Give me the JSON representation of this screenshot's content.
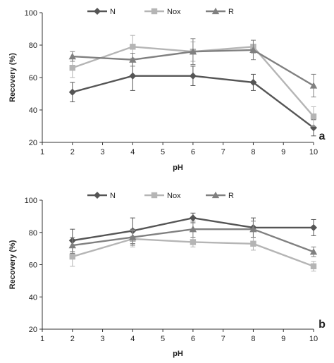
{
  "chart_data": [
    {
      "type": "line",
      "panel_label": "a",
      "x": [
        2,
        4,
        6,
        8,
        10
      ],
      "xlabel": "pH",
      "ylabel": "Recovery (%)",
      "xlim": [
        1,
        10
      ],
      "ylim": [
        20,
        100
      ],
      "xticks": [
        1,
        2,
        3,
        4,
        5,
        6,
        7,
        8,
        9,
        10
      ],
      "yticks": [
        20,
        40,
        60,
        80,
        100
      ],
      "legend_position": "top",
      "grid": false,
      "series": [
        {
          "name": "N",
          "marker": "diamond",
          "color": "#555555",
          "values": [
            51,
            61,
            61,
            57,
            29
          ],
          "errors": [
            6,
            9,
            6,
            5,
            5
          ]
        },
        {
          "name": "Nox",
          "marker": "square",
          "color": "#b5b5b5",
          "values": [
            66,
            79,
            76,
            79,
            36
          ],
          "errors": [
            6,
            7,
            6,
            4,
            6
          ]
        },
        {
          "name": "R",
          "marker": "triangle",
          "color": "#808080",
          "values": [
            73,
            71,
            76,
            77,
            55
          ],
          "errors": [
            3,
            4,
            8,
            6,
            7
          ]
        }
      ]
    },
    {
      "type": "line",
      "panel_label": "b",
      "x": [
        2,
        4,
        6,
        8,
        10
      ],
      "xlabel": "pH",
      "ylabel": "Recovery (%)",
      "xlim": [
        1,
        10
      ],
      "ylim": [
        20,
        100
      ],
      "xticks": [
        1,
        2,
        3,
        4,
        5,
        6,
        7,
        8,
        9,
        10
      ],
      "yticks": [
        20,
        40,
        60,
        80,
        100
      ],
      "legend_position": "top",
      "grid": false,
      "series": [
        {
          "name": "N",
          "marker": "diamond",
          "color": "#555555",
          "values": [
            75,
            81,
            89,
            83,
            83
          ],
          "errors": [
            7,
            8,
            3,
            6,
            5
          ]
        },
        {
          "name": "Nox",
          "marker": "square",
          "color": "#b5b5b5",
          "values": [
            65,
            76,
            74,
            73,
            59
          ],
          "errors": [
            6,
            5,
            3,
            4,
            3
          ]
        },
        {
          "name": "R",
          "marker": "triangle",
          "color": "#808080",
          "values": [
            72,
            77,
            82,
            82,
            68
          ],
          "errors": [
            5,
            5,
            5,
            5,
            3
          ]
        }
      ]
    }
  ]
}
